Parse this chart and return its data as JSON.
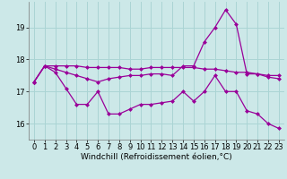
{
  "hours": [
    0,
    1,
    2,
    3,
    4,
    5,
    6,
    7,
    8,
    9,
    10,
    11,
    12,
    13,
    14,
    15,
    16,
    17,
    18,
    19,
    20,
    21,
    22,
    23
  ],
  "line_top": [
    17.3,
    17.8,
    17.8,
    17.8,
    17.8,
    17.75,
    17.75,
    17.75,
    17.75,
    17.7,
    17.7,
    17.75,
    17.75,
    17.75,
    17.75,
    17.75,
    17.7,
    17.7,
    17.65,
    17.6,
    17.6,
    17.55,
    17.5,
    17.5
  ],
  "line_mid": [
    17.3,
    17.8,
    17.7,
    17.6,
    17.5,
    17.4,
    17.3,
    17.4,
    17.45,
    17.5,
    17.5,
    17.55,
    17.55,
    17.5,
    17.8,
    17.8,
    18.55,
    19.0,
    19.55,
    19.1,
    17.55,
    17.55,
    17.45,
    17.4
  ],
  "line_bot": [
    17.3,
    17.8,
    17.6,
    17.1,
    16.6,
    16.6,
    17.0,
    16.3,
    16.3,
    16.45,
    16.6,
    16.6,
    16.65,
    16.7,
    17.0,
    16.7,
    17.0,
    17.5,
    17.0,
    17.0,
    16.4,
    16.3,
    16.0,
    15.85
  ],
  "line_color": "#990099",
  "bg_color": "#cce8e8",
  "grid_color": "#aad4d4",
  "xlabel_text": "Windchill (Refroidissement éolien,°C)",
  "yticks": [
    16,
    17,
    18,
    19
  ],
  "xlim": [
    -0.5,
    23.5
  ],
  "ylim": [
    15.5,
    19.8
  ],
  "marker": "D",
  "marker_size": 2.5,
  "line_width": 0.9,
  "tick_fontsize": 6,
  "xlabel_fontsize": 6.5
}
